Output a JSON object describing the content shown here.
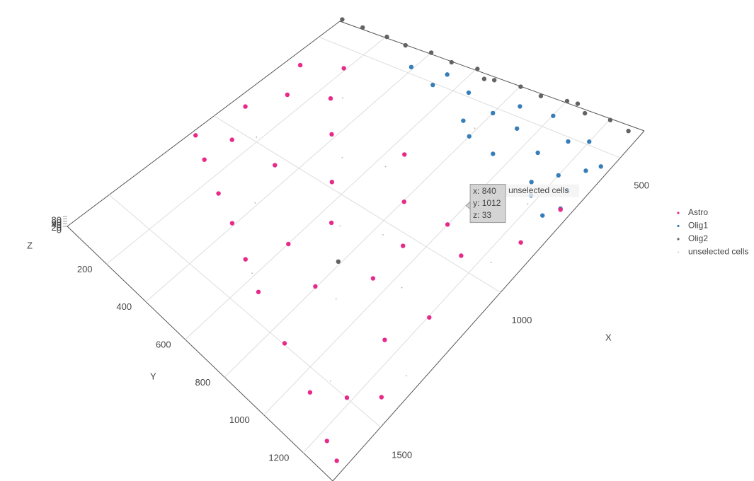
{
  "chart_data": {
    "type": "scatter3d",
    "xlim": [
      400,
      1700
    ],
    "ylim": [
      0,
      1350
    ],
    "zlim": [
      0,
      80
    ],
    "xticks": [
      500,
      1000,
      1500
    ],
    "yticks": [
      200,
      400,
      600,
      800,
      1000,
      1200
    ],
    "zticks": [
      0,
      20,
      40,
      60,
      80
    ],
    "xlabel": "X",
    "ylabel": "Y",
    "zlabel": "Z",
    "grid": true,
    "series": [
      {
        "name": "Astro",
        "color": "#e7298a",
        "size": 3.2,
        "x": [
          1115,
          1180,
          1245,
          1310,
          1375,
          1440,
          1505,
          1570,
          1635,
          1661,
          1050,
          920,
          790,
          660,
          855,
          985,
          1115,
          1180,
          1310,
          1440,
          1050,
          920,
          790,
          725,
          1180,
          985,
          855,
          725,
          1245,
          1050,
          595,
          1310,
          1505,
          920
        ],
        "y": [
          27,
          135,
          270,
          405,
          540,
          675,
          878,
          1080,
          1242,
          1323,
          135,
          68,
          135,
          68,
          405,
          540,
          675,
          945,
          1148,
          1283,
          945,
          810,
          675,
          270,
          1215,
          1148,
          1283,
          1323,
          608,
          338,
          203,
          810,
          1188,
          1013
        ],
        "z": [
          20,
          35,
          15,
          40,
          25,
          50,
          30,
          45,
          22,
          38,
          18,
          42,
          27,
          33,
          55,
          12,
          48,
          29,
          36,
          21,
          44,
          17,
          39,
          26,
          31,
          53,
          24,
          47,
          19,
          34,
          28,
          41,
          23,
          37
        ]
      },
      {
        "name": "Olig1",
        "color": "#377eb8",
        "size": 3.2,
        "x": [
          465,
          504,
          530,
          556,
          595,
          634,
          660,
          725,
          478,
          530,
          582,
          686,
          660,
          595,
          530,
          491,
          465,
          504,
          556,
          764,
          634,
          725
        ],
        "y": [
          540,
          675,
          810,
          945,
          1080,
          1215,
          1283,
          1323,
          878,
          1148,
          1283,
          1148,
          945,
          743,
          540,
          405,
          1013,
          1215,
          1323,
          1283,
          810,
          1188
        ],
        "z": [
          30,
          45,
          25,
          50,
          35,
          40,
          28,
          55,
          33,
          47,
          22,
          38,
          44,
          29,
          52,
          36,
          27,
          41,
          31,
          48,
          26,
          43
        ]
      },
      {
        "name": "Olig2",
        "color": "#636363",
        "size": 3.2,
        "x": [
          410,
          420,
          412,
          430,
          415,
          425,
          410,
          435,
          418,
          428,
          412,
          432,
          420,
          438,
          440,
          405,
          1200
        ],
        "y": [
          20,
          120,
          220,
          320,
          420,
          520,
          620,
          720,
          820,
          920,
          1020,
          1120,
          1220,
          1320,
          680,
          1060,
          800
        ],
        "z": [
          40,
          55,
          35,
          60,
          45,
          50,
          38,
          58,
          42,
          52,
          47,
          56,
          44,
          61,
          49,
          39,
          30
        ]
      },
      {
        "name": "unselected cells",
        "color": "#b0b0b0",
        "size": 0.9,
        "x": [
          700,
          900,
          1100,
          1300,
          800,
          1000,
          1200,
          1400,
          600,
          1500,
          950,
          1150,
          750,
          1350,
          1050,
          850
        ],
        "y": [
          300,
          500,
          700,
          900,
          1000,
          200,
          400,
          600,
          800,
          1100,
          1250,
          1050,
          1200,
          1300,
          850,
          650
        ],
        "z": [
          20,
          30,
          25,
          35,
          15,
          40,
          28,
          33,
          22,
          26,
          31,
          18,
          37,
          24,
          29,
          21
        ]
      }
    ],
    "hover": {
      "lines": [
        "x: 840",
        "y: 1012",
        "z: 33"
      ],
      "trace": "unselected cells",
      "x": 840,
      "y": 1012,
      "z": 33
    }
  }
}
